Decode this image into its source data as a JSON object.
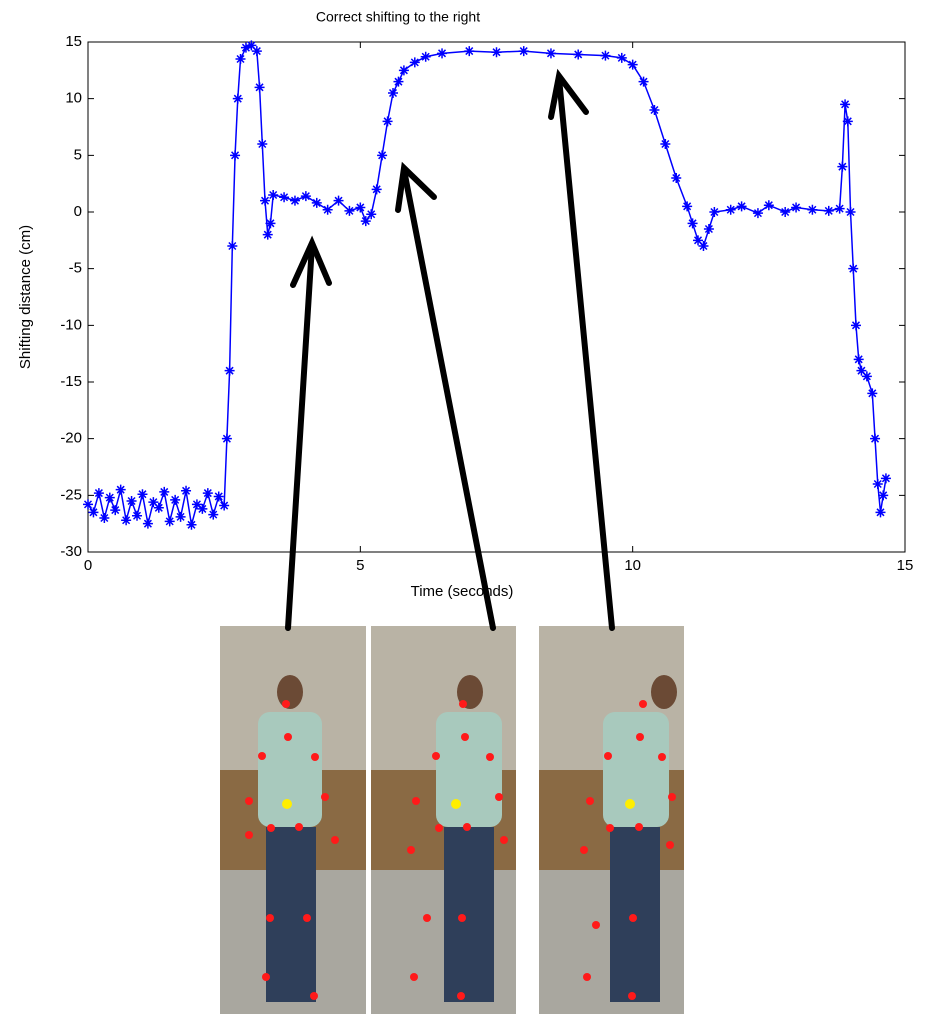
{
  "chart_data": {
    "type": "line",
    "title": "Correct shifting to the right",
    "x_label": "Time (seconds)",
    "y_label": "Shifting distance (cm)",
    "xlim": [
      0,
      15
    ],
    "xticks": [
      0,
      5,
      10,
      15
    ],
    "ylim": [
      -30,
      15
    ],
    "yticks": [
      -30,
      -25,
      -20,
      -15,
      -10,
      -5,
      0,
      5,
      10,
      15
    ],
    "series": [
      {
        "color": "#0000ff",
        "x": [
          0.0,
          0.1,
          0.2,
          0.3,
          0.4,
          0.5,
          0.6,
          0.7,
          0.8,
          0.9,
          1.0,
          1.1,
          1.2,
          1.3,
          1.4,
          1.5,
          1.6,
          1.7,
          1.8,
          1.9,
          2.0,
          2.1,
          2.2,
          2.3,
          2.4,
          2.5,
          2.55,
          2.6,
          2.65,
          2.7,
          2.75,
          2.8,
          2.9,
          3.0,
          3.1,
          3.15,
          3.2,
          3.25,
          3.3,
          3.35,
          3.4,
          3.6,
          3.8,
          4.0,
          4.2,
          4.4,
          4.6,
          4.8,
          5.0,
          5.1,
          5.2,
          5.3,
          5.4,
          5.5,
          5.6,
          5.7,
          5.8,
          6.0,
          6.2,
          6.5,
          7.0,
          7.5,
          8.0,
          8.5,
          9.0,
          9.5,
          9.8,
          10.0,
          10.2,
          10.4,
          10.6,
          10.8,
          11.0,
          11.1,
          11.2,
          11.3,
          11.4,
          11.5,
          11.8,
          12.0,
          12.3,
          12.5,
          12.8,
          13.0,
          13.3,
          13.6,
          13.8,
          13.85,
          13.9,
          13.95,
          14.0,
          14.05,
          14.1,
          14.15,
          14.2,
          14.3,
          14.4,
          14.45,
          14.5,
          14.55,
          14.6,
          14.65
        ],
        "values": [
          -25.8,
          -26.5,
          -24.8,
          -27.0,
          -25.2,
          -26.3,
          -24.5,
          -27.2,
          -25.5,
          -26.8,
          -24.9,
          -27.5,
          -25.6,
          -26.1,
          -24.7,
          -27.3,
          -25.4,
          -26.9,
          -24.6,
          -27.6,
          -25.8,
          -26.2,
          -24.8,
          -26.7,
          -25.1,
          -25.9,
          -20,
          -14,
          -3,
          5,
          10,
          13.5,
          14.5,
          14.7,
          14.2,
          11,
          6,
          1,
          -2,
          -1,
          1.5,
          1.3,
          1.0,
          1.4,
          0.8,
          0.2,
          1.0,
          0.1,
          0.4,
          -0.8,
          -0.2,
          2,
          5,
          8,
          10.5,
          11.5,
          12.5,
          13.2,
          13.7,
          14.0,
          14.2,
          14.1,
          14.2,
          14.0,
          13.9,
          13.8,
          13.6,
          13.0,
          11.5,
          9,
          6,
          3,
          0.5,
          -1,
          -2.5,
          -3,
          -1.5,
          0.0,
          0.2,
          0.5,
          -0.1,
          0.6,
          0.0,
          0.4,
          0.2,
          0.1,
          0.3,
          4,
          9.5,
          8,
          0,
          -5,
          -10,
          -13,
          -14,
          -14.5,
          -16,
          -20,
          -24,
          -26.5,
          -25,
          -23.5
        ]
      }
    ]
  }
}
